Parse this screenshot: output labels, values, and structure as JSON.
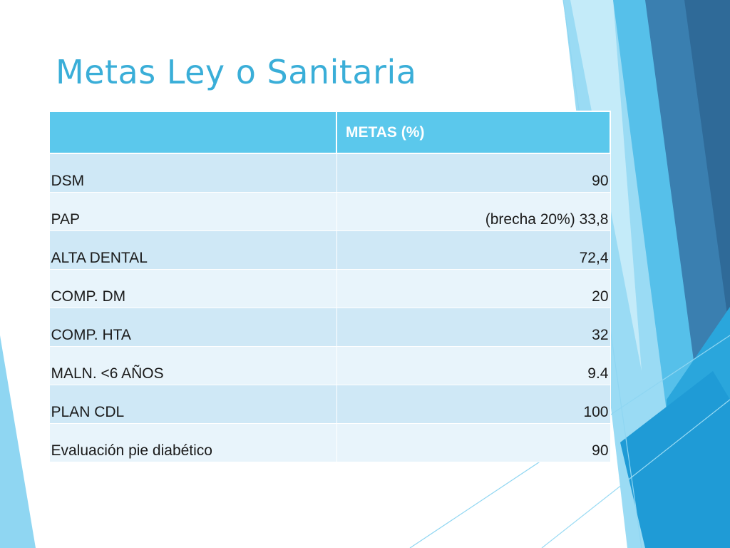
{
  "slide": {
    "title": "Metas Ley o Sanitaria"
  },
  "table": {
    "headers": [
      "",
      "METAS (%)"
    ],
    "rows": [
      {
        "label": "DSM",
        "value": "90"
      },
      {
        "label": "PAP",
        "value": "(brecha 20%) 33,8"
      },
      {
        "label": "ALTA DENTAL",
        "value": "72,4"
      },
      {
        "label": "COMP. DM",
        "value": "20"
      },
      {
        "label": "COMP. HTA",
        "value": "32"
      },
      {
        "label": "MALN. <6 AÑOS",
        "value": "9.4"
      },
      {
        "label": "PLAN CDL",
        "value": "100"
      },
      {
        "label": "Evaluación pie diabético",
        "value": "90"
      }
    ]
  },
  "colors": {
    "title": "#3aaed8",
    "header_fill": "#5bc8ec",
    "row_dark": "#cfe8f6",
    "row_light": "#e8f4fb",
    "deco_light": "#8fd6f2",
    "deco_mid": "#4db8e6",
    "deco_dark": "#2f6f9e"
  }
}
